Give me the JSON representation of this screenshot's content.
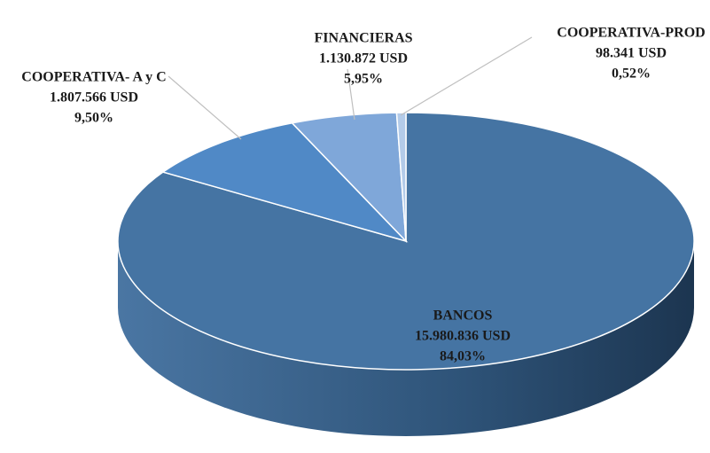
{
  "chart_data": {
    "type": "pie",
    "categories": [
      "BANCOS",
      "COOPERATIVA- A y C",
      "FINANCIERAS",
      "COOPERATIVA-PROD"
    ],
    "values": [
      15980836,
      1807566,
      1130872,
      98341
    ],
    "value_labels": [
      "15.980.836 USD",
      "1.807.566 USD",
      "1.130.872 USD",
      "98.341 USD"
    ],
    "percents": [
      84.03,
      9.5,
      5.95,
      0.52
    ],
    "percent_labels": [
      "84,03%",
      "9,50%",
      "5,95%",
      "0,52%"
    ],
    "colors": [
      "#4574a3",
      "#5089c6",
      "#7fa7d9",
      "#b3cbe9"
    ]
  }
}
